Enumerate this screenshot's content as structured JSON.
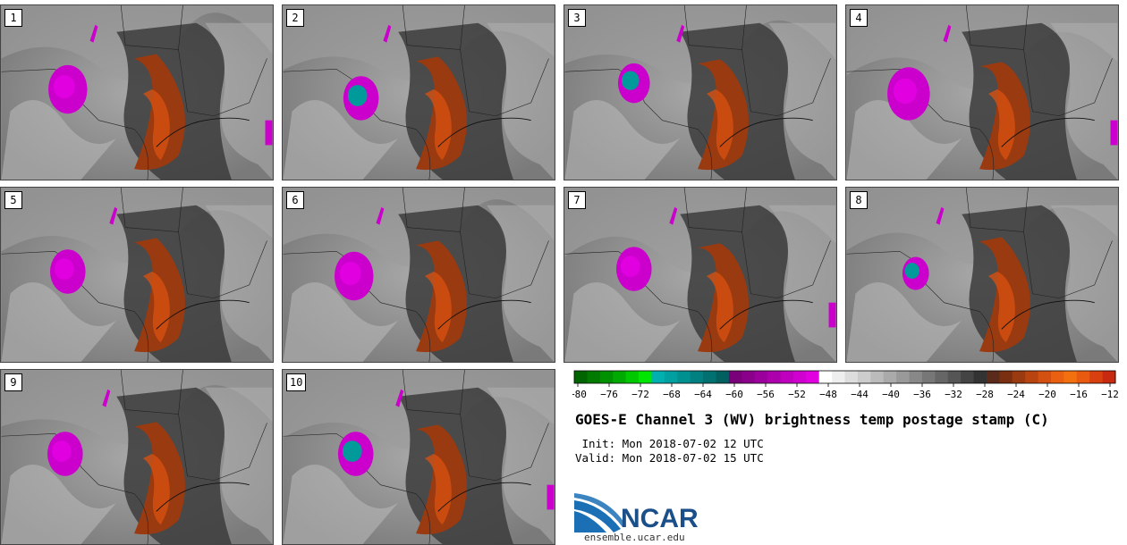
{
  "panels": [
    {
      "label": "1"
    },
    {
      "label": "2"
    },
    {
      "label": "3"
    },
    {
      "label": "4"
    },
    {
      "label": "5"
    },
    {
      "label": "6"
    },
    {
      "label": "7"
    },
    {
      "label": "8"
    },
    {
      "label": "9"
    },
    {
      "label": "10"
    }
  ],
  "colorbar": {
    "ticks": [
      "−80",
      "−76",
      "−72",
      "−68",
      "−64",
      "−60",
      "−56",
      "−52",
      "−48",
      "−44",
      "−40",
      "−36",
      "−32",
      "−28",
      "−24",
      "−20",
      "−16",
      "−12"
    ],
    "colors": [
      "#006400",
      "#007a00",
      "#009100",
      "#00aa00",
      "#00c800",
      "#00e600",
      "#00b0b0",
      "#00a0a0",
      "#009090",
      "#008080",
      "#007070",
      "#006060",
      "#7a007a",
      "#8a008a",
      "#9c009c",
      "#ad00ad",
      "#bf00bf",
      "#d000d0",
      "#e000e0",
      "#ffffff",
      "#eeeeee",
      "#dddddd",
      "#cccccc",
      "#bbbbbb",
      "#aaaaaa",
      "#999999",
      "#888888",
      "#777777",
      "#666666",
      "#555555",
      "#444444",
      "#333333",
      "#5a2a1a",
      "#7a3010",
      "#9a3a10",
      "#b84410",
      "#d45010",
      "#e86010",
      "#f27010",
      "#e85a10",
      "#d84010",
      "#c82a10"
    ]
  },
  "title": "GOES-E Channel 3 (WV) brightness temp postage stamp (C)",
  "init": " Init: Mon 2018-07-02 12 UTC",
  "valid": "Valid: Mon 2018-07-02 15 UTC",
  "logo": {
    "text": "NCAR",
    "color": "#1a4f8a",
    "accent": "#1a6fb5"
  },
  "url": "ensemble.ucar.edu"
}
